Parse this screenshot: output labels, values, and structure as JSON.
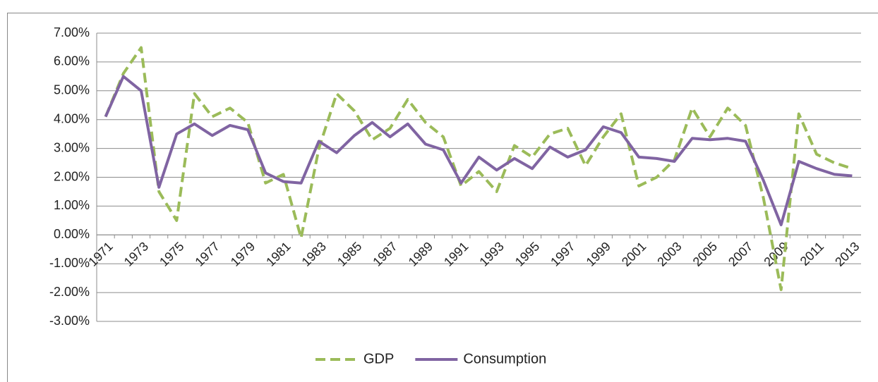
{
  "chart_data": {
    "type": "line",
    "categories": [
      "1971",
      null,
      "1973",
      null,
      "1975",
      null,
      "1977",
      null,
      "1979",
      null,
      "1981",
      null,
      "1983",
      null,
      "1985",
      null,
      "1987",
      null,
      "1989",
      null,
      "1991",
      null,
      "1993",
      null,
      "1995",
      null,
      "1997",
      null,
      "1999",
      null,
      "2001",
      null,
      "2003",
      null,
      "2005",
      null,
      "2007",
      null,
      "2009",
      null,
      "2011",
      null,
      "2013"
    ],
    "series": [
      {
        "name": "GDP",
        "color": "#9bbb59",
        "line_style": "dashed",
        "values": [
          4.1,
          5.6,
          6.5,
          1.5,
          0.5,
          4.9,
          4.1,
          4.4,
          3.9,
          1.8,
          2.1,
          -0.1,
          3.0,
          4.9,
          4.3,
          3.3,
          3.7,
          4.7,
          3.9,
          3.4,
          1.7,
          2.2,
          1.5,
          3.1,
          2.7,
          3.5,
          3.7,
          2.4,
          3.4,
          4.2,
          1.7,
          2.0,
          2.6,
          4.4,
          3.4,
          4.4,
          3.8,
          1.3,
          -1.9,
          4.2,
          2.8,
          2.5,
          2.3
        ]
      },
      {
        "name": "Consumption",
        "color": "#8064a2",
        "line_style": "solid",
        "values": [
          4.1,
          5.5,
          5.0,
          1.65,
          3.5,
          3.85,
          3.45,
          3.8,
          3.65,
          2.15,
          1.85,
          1.8,
          3.25,
          2.85,
          3.45,
          3.9,
          3.4,
          3.85,
          3.15,
          2.95,
          1.8,
          2.7,
          2.25,
          2.65,
          2.3,
          3.05,
          2.7,
          2.95,
          3.75,
          3.55,
          2.7,
          2.65,
          2.55,
          3.35,
          3.3,
          3.35,
          3.25,
          1.9,
          0.35,
          2.55,
          2.3,
          2.1,
          2.05
        ]
      }
    ],
    "ylim": [
      -3,
      7
    ],
    "yticks": [
      {
        "value": -3,
        "label": "-3.00%"
      },
      {
        "value": -2,
        "label": "-2.00%"
      },
      {
        "value": -1,
        "label": "-1.00%"
      },
      {
        "value": 0,
        "label": "0.00%"
      },
      {
        "value": 1,
        "label": "1.00%"
      },
      {
        "value": 2,
        "label": "2.00%"
      },
      {
        "value": 3,
        "label": "3.00%"
      },
      {
        "value": 4,
        "label": "4.00%"
      },
      {
        "value": 5,
        "label": "5.00%"
      },
      {
        "value": 6,
        "label": "6.00%"
      },
      {
        "value": 7,
        "label": "7.00%"
      }
    ],
    "grid": true,
    "legend": "bottom"
  }
}
